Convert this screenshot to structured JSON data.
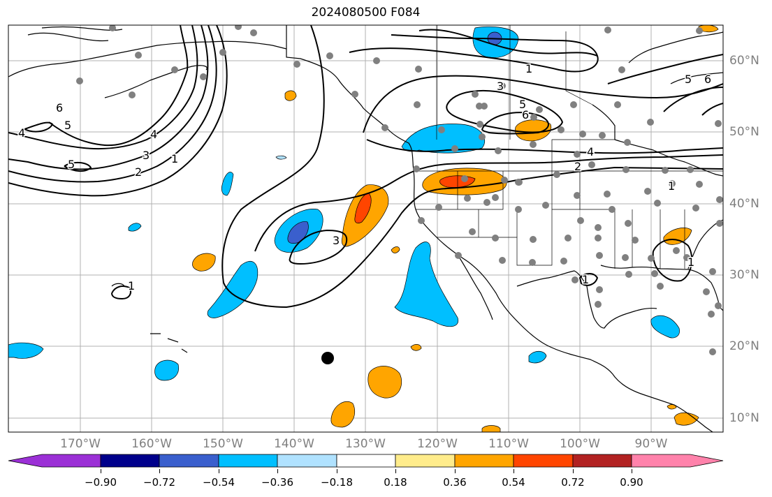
{
  "title": "2024080500 F084",
  "lon_labels": [
    "170°W",
    "160°W",
    "150°W",
    "140°W",
    "130°W",
    "120°W",
    "110°W",
    "100°W",
    "90°W"
  ],
  "lat_labels": [
    "60°N",
    "50°N",
    "40°N",
    "30°N",
    "20°N",
    "10°N"
  ],
  "colorbar": {
    "tick_labels": [
      "−0.90",
      "−0.72",
      "−0.54",
      "−0.36",
      "−0.18",
      "0.18",
      "0.36",
      "0.54",
      "0.72",
      "0.90"
    ],
    "colors": [
      "#9b30d6",
      "#00008b",
      "#3a5fcd",
      "#00bfff",
      "#b0e2ff",
      "#ffffff",
      "#ffec8b",
      "#ffa500",
      "#ff4500",
      "#b22222",
      "#ff82ab"
    ]
  },
  "contour_labels": [
    "6",
    "5",
    "4",
    "5",
    "4",
    "3",
    "2",
    "1",
    "2",
    "3",
    "1",
    "3",
    "5",
    "6",
    "4",
    "2",
    "1",
    "1",
    "1",
    "1",
    "5",
    "6"
  ],
  "colors": {
    "grid": "#b0b0b0",
    "station": "#808080",
    "contour": "#000000",
    "neg_light": "#00bfff",
    "neg_dark": "#3a5fcd",
    "pos_light": "#ffa500",
    "pos_dark": "#ff4500"
  }
}
